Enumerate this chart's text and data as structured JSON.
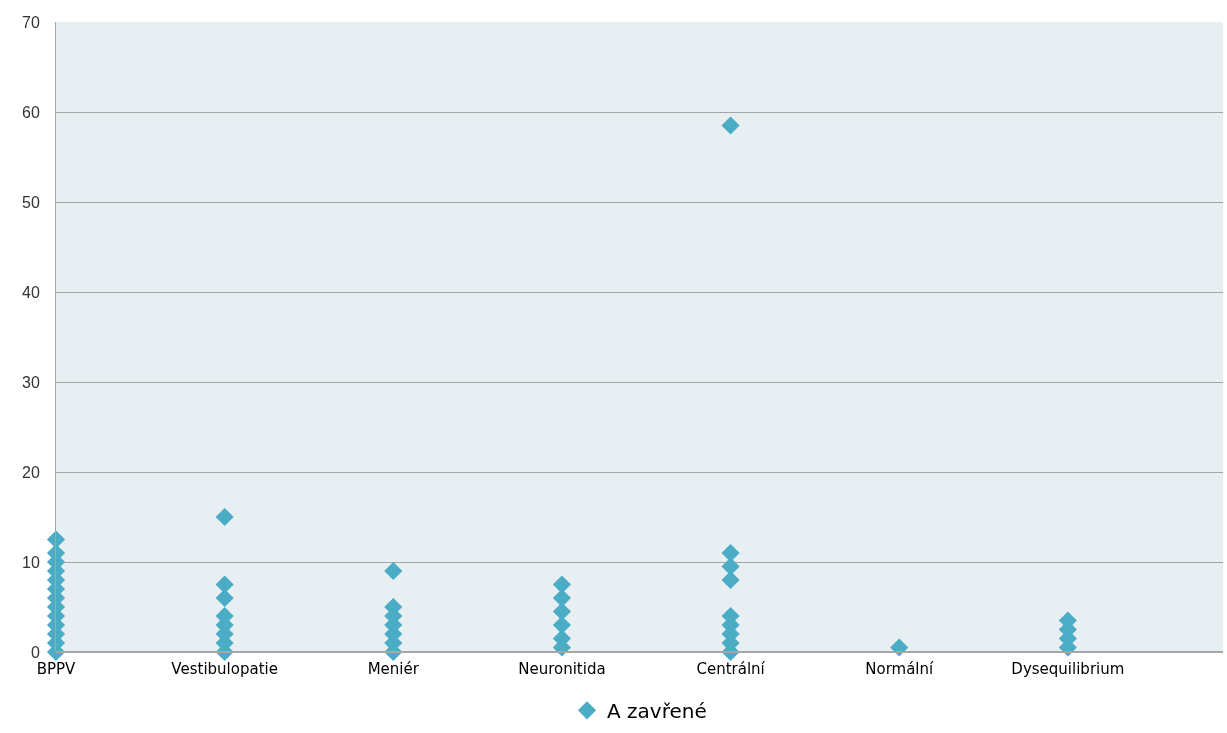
{
  "chart_data": {
    "type": "scatter",
    "categories": [
      "BPPV",
      "Vestibulopatie",
      "Meniér",
      "Neuronitida",
      "Centrální",
      "Normální",
      "Dysequilibrium"
    ],
    "series": [
      {
        "name": "A zavřené",
        "color": "#4bacc6",
        "x": [
          "BPPV",
          "BPPV",
          "BPPV",
          "BPPV",
          "BPPV",
          "BPPV",
          "BPPV",
          "BPPV",
          "BPPV",
          "BPPV",
          "BPPV",
          "BPPV",
          "BPPV",
          "Vestibulopatie",
          "Vestibulopatie",
          "Vestibulopatie",
          "Vestibulopatie",
          "Vestibulopatie",
          "Vestibulopatie",
          "Vestibulopatie",
          "Vestibulopatie",
          "Meniér",
          "Meniér",
          "Meniér",
          "Meniér",
          "Meniér",
          "Meniér",
          "Meniér",
          "Neuronitida",
          "Neuronitida",
          "Neuronitida",
          "Neuronitida",
          "Neuronitida",
          "Neuronitida",
          "Centrální",
          "Centrální",
          "Centrální",
          "Centrální",
          "Centrální",
          "Centrální",
          "Centrální",
          "Centrální",
          "Centrální",
          "Normální",
          "Dysequilibrium",
          "Dysequilibrium",
          "Dysequilibrium",
          "Dysequilibrium"
        ],
        "values": [
          0,
          1,
          2,
          3,
          4,
          5,
          6,
          7,
          8,
          9,
          10,
          11,
          12.5,
          0,
          1,
          2,
          3,
          4,
          6,
          7.5,
          15,
          0,
          1,
          2,
          3,
          4,
          5,
          9,
          0.5,
          1.5,
          3,
          4.5,
          6,
          7.5,
          0,
          1,
          2,
          3,
          4,
          8,
          9.5,
          11,
          58.5,
          0.5,
          0.5,
          1.5,
          2.5,
          3.5
        ]
      }
    ],
    "ylim": [
      0,
      70
    ],
    "yticks": [
      0,
      10,
      20,
      30,
      40,
      50,
      60,
      70
    ],
    "grid": "y",
    "legend": "bottom",
    "marker": "diamond"
  }
}
